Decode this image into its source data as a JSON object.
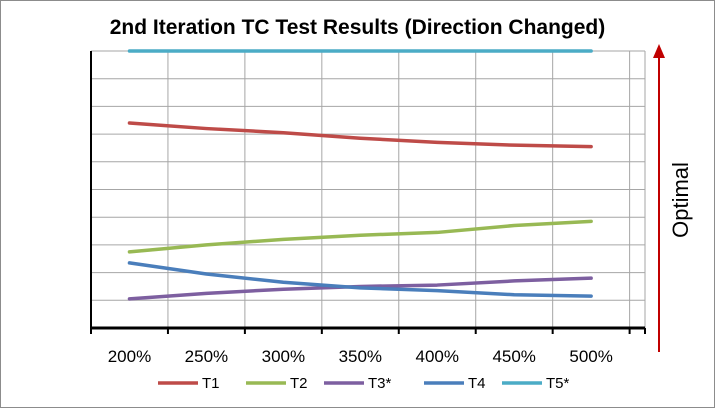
{
  "chart_data": {
    "type": "line",
    "title": "2nd Iteration TC Test Results (Direction Changed)",
    "categories": [
      "200%",
      "250%",
      "300%",
      "350%",
      "400%",
      "450%",
      "500%"
    ],
    "ylim": [
      0,
      10
    ],
    "grid": true,
    "legend_placement": "bottom",
    "annotation": "Optimal",
    "annotation_arrow_color": "#c00000",
    "series": [
      {
        "name": "T1",
        "color": "#be4b48",
        "values": [
          7.4,
          7.2,
          7.05,
          6.85,
          6.7,
          6.6,
          6.55
        ]
      },
      {
        "name": "T2",
        "color": "#98b954",
        "values": [
          2.75,
          3.0,
          3.2,
          3.35,
          3.45,
          3.7,
          3.85
        ]
      },
      {
        "name": "T3*",
        "color": "#7d5fa0",
        "values": [
          1.05,
          1.25,
          1.4,
          1.5,
          1.55,
          1.7,
          1.8
        ]
      },
      {
        "name": "T4",
        "color": "#4a7ebb",
        "values": [
          2.35,
          1.95,
          1.65,
          1.45,
          1.35,
          1.2,
          1.15
        ]
      },
      {
        "name": "T5*",
        "color": "#4bacc6",
        "values": [
          10,
          10,
          10,
          10,
          10,
          10,
          10
        ]
      }
    ]
  }
}
